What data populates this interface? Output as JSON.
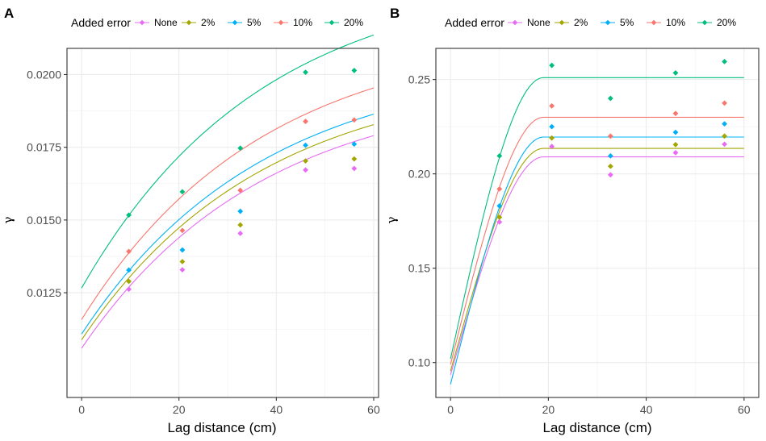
{
  "figure": {
    "legend_title": "Added error",
    "series_labels": [
      "None",
      "2%",
      "5%",
      "10%",
      "20%"
    ],
    "colors": [
      "#E76BF3",
      "#A3A500",
      "#00B0F6",
      "#F8766D",
      "#00BF7D"
    ]
  },
  "chart_data": [
    {
      "panel": "A",
      "type": "scatter",
      "xlabel": "Lag distance (cm)",
      "ylabel": "γ",
      "xlim": [
        -3,
        61
      ],
      "ylim": [
        0.0089,
        0.0209
      ],
      "xticks": [
        0,
        20,
        40,
        60
      ],
      "xtick_labels": [
        "0",
        "20",
        "40",
        "60"
      ],
      "yticks": [
        0.0125,
        0.015,
        0.0175,
        0.02
      ],
      "ytick_labels": [
        "0.0125",
        "0.0150",
        "0.0175",
        "0.0200"
      ],
      "grid": true,
      "legend_position": "top",
      "x": [
        9.7,
        20.7,
        32.6,
        46,
        56
      ],
      "series": [
        {
          "name": "None",
          "points": [
            0.01262,
            0.01329,
            0.01454,
            0.01672,
            0.01677
          ],
          "fit": {
            "model": "exponential",
            "nugget": 0.01059,
            "sill": 0.0197,
            "range": 37
          }
        },
        {
          "name": "2%",
          "points": [
            0.01289,
            0.01357,
            0.01483,
            0.01703,
            0.0171
          ],
          "fit": {
            "model": "exponential",
            "nugget": 0.01088,
            "sill": 0.0201,
            "range": 37
          }
        },
        {
          "name": "5%",
          "points": [
            0.01328,
            0.01397,
            0.0153,
            0.01757,
            0.01761
          ],
          "fit": {
            "model": "exponential",
            "nugget": 0.01108,
            "sill": 0.0205,
            "range": 37
          }
        },
        {
          "name": "10%",
          "points": [
            0.01392,
            0.01464,
            0.01602,
            0.01839,
            0.01844
          ],
          "fit": {
            "model": "exponential",
            "nugget": 0.01158,
            "sill": 0.0215,
            "range": 37
          }
        },
        {
          "name": "20%",
          "points": [
            0.01517,
            0.01597,
            0.01747,
            0.02008,
            0.02014
          ],
          "fit": {
            "model": "exponential",
            "nugget": 0.01266,
            "sill": 0.0235,
            "range": 37
          }
        }
      ]
    },
    {
      "panel": "B",
      "type": "scatter",
      "xlabel": "Lag distance (cm)",
      "ylabel": "γ",
      "xlim": [
        -3,
        63
      ],
      "ylim": [
        0.0815,
        0.2665
      ],
      "xticks": [
        0,
        20,
        40,
        60
      ],
      "xtick_labels": [
        "0",
        "20",
        "40",
        "60"
      ],
      "yticks": [
        0.1,
        0.15,
        0.2,
        0.25
      ],
      "ytick_labels": [
        "0.10",
        "0.15",
        "0.20",
        "0.25"
      ],
      "grid": true,
      "legend_position": "top",
      "x": [
        10,
        20.7,
        32.7,
        46,
        56
      ],
      "series": [
        {
          "name": "None",
          "points": [
            0.1745,
            0.2145,
            0.1995,
            0.2112,
            0.2157
          ],
          "fit": {
            "model": "spherical",
            "nugget": 0.0935,
            "sill": 0.209,
            "range": 19
          }
        },
        {
          "name": "2%",
          "points": [
            0.177,
            0.219,
            0.204,
            0.2155,
            0.22
          ],
          "fit": {
            "model": "spherical",
            "nugget": 0.0955,
            "sill": 0.2135,
            "range": 19
          }
        },
        {
          "name": "5%",
          "points": [
            0.183,
            0.225,
            0.2095,
            0.222,
            0.2265
          ],
          "fit": {
            "model": "spherical",
            "nugget": 0.0885,
            "sill": 0.2195,
            "range": 19
          }
        },
        {
          "name": "10%",
          "points": [
            0.192,
            0.236,
            0.22,
            0.232,
            0.2375
          ],
          "fit": {
            "model": "spherical",
            "nugget": 0.099,
            "sill": 0.23,
            "range": 19
          }
        },
        {
          "name": "20%",
          "points": [
            0.2095,
            0.2575,
            0.24,
            0.2535,
            0.2595
          ],
          "fit": {
            "model": "spherical",
            "nugget": 0.102,
            "sill": 0.251,
            "range": 19
          }
        }
      ]
    }
  ]
}
